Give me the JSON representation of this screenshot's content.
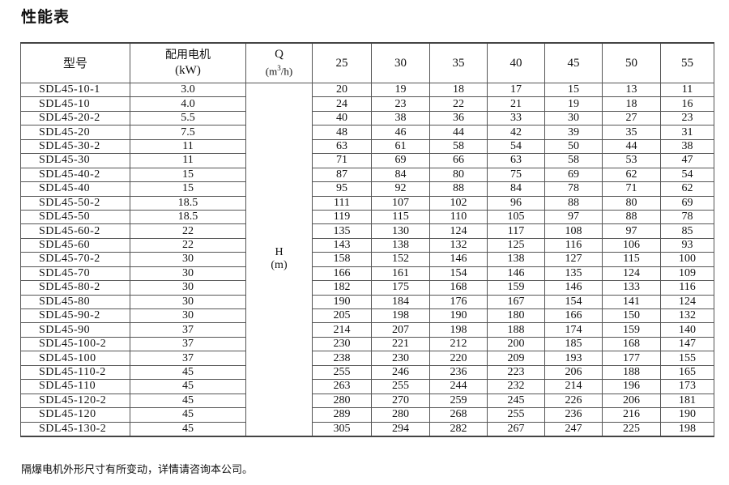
{
  "title": "性能表",
  "table": {
    "header": {
      "model": "型号",
      "motor_line1": "配用电机",
      "motor_line2": "(kW)",
      "q_label": "Q",
      "q_unit_pre": "(m",
      "q_unit_sup": "3",
      "q_unit_post": "/h)",
      "flows": [
        "25",
        "30",
        "35",
        "40",
        "45",
        "50",
        "55"
      ]
    },
    "h_label": "H",
    "h_unit": "(m)",
    "rows": [
      {
        "model": "SDL45-10-1",
        "kw": "3.0",
        "heads": [
          "20",
          "19",
          "18",
          "17",
          "15",
          "13",
          "11"
        ]
      },
      {
        "model": "SDL45-10",
        "kw": "4.0",
        "heads": [
          "24",
          "23",
          "22",
          "21",
          "19",
          "18",
          "16"
        ]
      },
      {
        "model": "SDL45-20-2",
        "kw": "5.5",
        "heads": [
          "40",
          "38",
          "36",
          "33",
          "30",
          "27",
          "23"
        ]
      },
      {
        "model": "SDL45-20",
        "kw": "7.5",
        "heads": [
          "48",
          "46",
          "44",
          "42",
          "39",
          "35",
          "31"
        ]
      },
      {
        "model": "SDL45-30-2",
        "kw": "11",
        "heads": [
          "63",
          "61",
          "58",
          "54",
          "50",
          "44",
          "38"
        ]
      },
      {
        "model": "SDL45-30",
        "kw": "11",
        "heads": [
          "71",
          "69",
          "66",
          "63",
          "58",
          "53",
          "47"
        ]
      },
      {
        "model": "SDL45-40-2",
        "kw": "15",
        "heads": [
          "87",
          "84",
          "80",
          "75",
          "69",
          "62",
          "54"
        ]
      },
      {
        "model": "SDL45-40",
        "kw": "15",
        "heads": [
          "95",
          "92",
          "88",
          "84",
          "78",
          "71",
          "62"
        ]
      },
      {
        "model": "SDL45-50-2",
        "kw": "18.5",
        "heads": [
          "111",
          "107",
          "102",
          "96",
          "88",
          "80",
          "69"
        ]
      },
      {
        "model": "SDL45-50",
        "kw": "18.5",
        "heads": [
          "119",
          "115",
          "110",
          "105",
          "97",
          "88",
          "78"
        ]
      },
      {
        "model": "SDL45-60-2",
        "kw": "22",
        "heads": [
          "135",
          "130",
          "124",
          "117",
          "108",
          "97",
          "85"
        ]
      },
      {
        "model": "SDL45-60",
        "kw": "22",
        "heads": [
          "143",
          "138",
          "132",
          "125",
          "116",
          "106",
          "93"
        ]
      },
      {
        "model": "SDL45-70-2",
        "kw": "30",
        "heads": [
          "158",
          "152",
          "146",
          "138",
          "127",
          "115",
          "100"
        ]
      },
      {
        "model": "SDL45-70",
        "kw": "30",
        "heads": [
          "166",
          "161",
          "154",
          "146",
          "135",
          "124",
          "109"
        ]
      },
      {
        "model": "SDL45-80-2",
        "kw": "30",
        "heads": [
          "182",
          "175",
          "168",
          "159",
          "146",
          "133",
          "116"
        ]
      },
      {
        "model": "SDL45-80",
        "kw": "30",
        "heads": [
          "190",
          "184",
          "176",
          "167",
          "154",
          "141",
          "124"
        ]
      },
      {
        "model": "SDL45-90-2",
        "kw": "30",
        "heads": [
          "205",
          "198",
          "190",
          "180",
          "166",
          "150",
          "132"
        ]
      },
      {
        "model": "SDL45-90",
        "kw": "37",
        "heads": [
          "214",
          "207",
          "198",
          "188",
          "174",
          "159",
          "140"
        ]
      },
      {
        "model": "SDL45-100-2",
        "kw": "37",
        "heads": [
          "230",
          "221",
          "212",
          "200",
          "185",
          "168",
          "147"
        ]
      },
      {
        "model": "SDL45-100",
        "kw": "37",
        "heads": [
          "238",
          "230",
          "220",
          "209",
          "193",
          "177",
          "155"
        ]
      },
      {
        "model": "SDL45-110-2",
        "kw": "45",
        "heads": [
          "255",
          "246",
          "236",
          "223",
          "206",
          "188",
          "165"
        ]
      },
      {
        "model": "SDL45-110",
        "kw": "45",
        "heads": [
          "263",
          "255",
          "244",
          "232",
          "214",
          "196",
          "173"
        ]
      },
      {
        "model": "SDL45-120-2",
        "kw": "45",
        "heads": [
          "280",
          "270",
          "259",
          "245",
          "226",
          "206",
          "181"
        ]
      },
      {
        "model": "SDL45-120",
        "kw": "45",
        "heads": [
          "289",
          "280",
          "268",
          "255",
          "236",
          "216",
          "190"
        ]
      },
      {
        "model": "SDL45-130-2",
        "kw": "45",
        "heads": [
          "305",
          "294",
          "282",
          "267",
          "247",
          "225",
          "198"
        ]
      }
    ]
  },
  "footnote": "隔爆电机外形尺寸有所变动，详情请咨询本公司。"
}
